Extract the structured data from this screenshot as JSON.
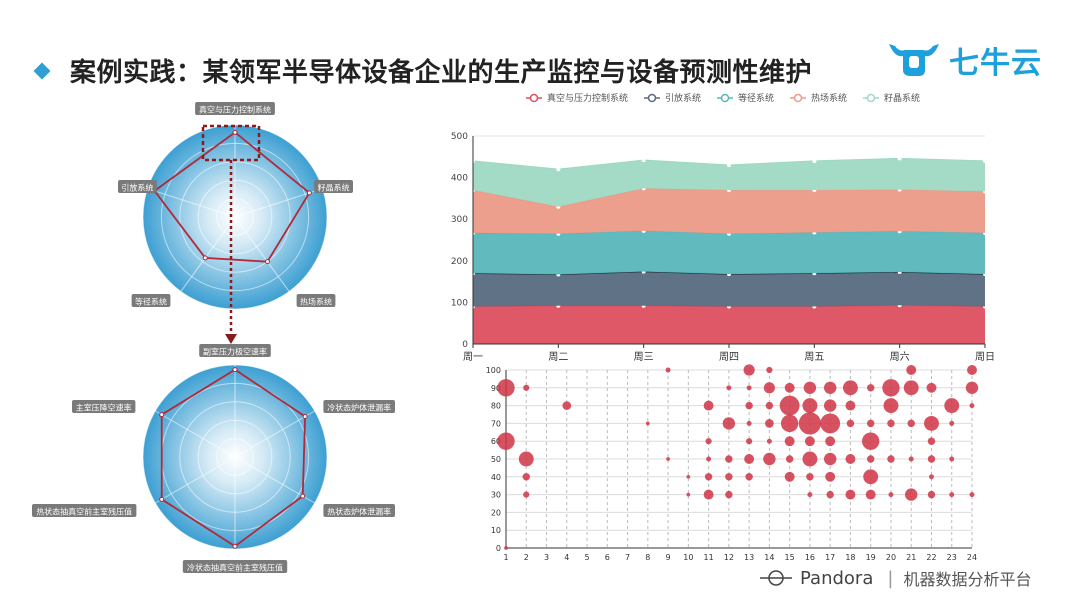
{
  "header": {
    "title": "案例实践：某领军半导体设备企业的生产监控与设备预测性维护",
    "logo_text": "七牛云"
  },
  "footer": {
    "brand": "Pandora",
    "watermark": "机器数据分析平台"
  },
  "colors": {
    "accent": "#2f9fd6",
    "radar_fill": "#4aa8d8",
    "radar_line": "#b02a3a",
    "highlight": "#8b1a1a"
  },
  "chart_data": [
    {
      "type": "radar",
      "axes": [
        "真空与压力控制系统",
        "籽晶系统",
        "热场系统",
        "等径系统",
        "引放系统"
      ],
      "values": [
        92,
        85,
        60,
        55,
        92
      ],
      "max": 100
    },
    {
      "type": "radar",
      "axes": [
        "副室压力极空速率",
        "冷状态炉体泄漏率",
        "热状态炉体泄漏率",
        "冷状态抽真空前主室残压值",
        "热状态抽真空前主室残压值",
        "主室压降空速率"
      ],
      "values": [
        95,
        88,
        85,
        97,
        92,
        92
      ],
      "max": 100
    },
    {
      "type": "area",
      "legend": [
        "真空与压力控制系统",
        "引放系统",
        "等径系统",
        "热场系统",
        "籽晶系统"
      ],
      "categories": [
        "周一",
        "周二",
        "周三",
        "周四",
        "周五",
        "周六",
        "周日"
      ],
      "ylim": [
        0,
        500
      ],
      "yticks": [
        0,
        100,
        200,
        300,
        400,
        500
      ],
      "series": [
        {
          "name": "真空与压力控制系统",
          "color": "#dd4f5f",
          "values": [
            90,
            92,
            92,
            90,
            90,
            93,
            90
          ]
        },
        {
          "name": "引放系统",
          "color": "#566a7f",
          "values": [
            80,
            75,
            82,
            78,
            80,
            80,
            78
          ]
        },
        {
          "name": "等径系统",
          "color": "#58b6bb",
          "values": [
            97,
            98,
            98,
            97,
            98,
            98,
            99
          ]
        },
        {
          "name": "热场系统",
          "color": "#eb9a86",
          "values": [
            103,
            65,
            102,
            105,
            102,
            100,
            100
          ]
        },
        {
          "name": "籽晶系统",
          "color": "#9fd9c4",
          "values": [
            70,
            90,
            68,
            60,
            70,
            75,
            73
          ]
        }
      ]
    },
    {
      "type": "scatter",
      "x_ticks": [
        "1",
        "2",
        "3",
        "4",
        "5",
        "6",
        "7",
        "8",
        "9",
        "10",
        "11",
        "12",
        "13",
        "14",
        "15",
        "16",
        "17",
        "18",
        "19",
        "20",
        "21",
        "22",
        "23",
        "24"
      ],
      "y_ticks": [
        0,
        10,
        20,
        30,
        40,
        50,
        60,
        70,
        80,
        90,
        100
      ],
      "color": "#d03445",
      "points": [
        [
          1,
          90,
          14
        ],
        [
          1,
          60,
          14
        ],
        [
          1,
          0,
          3
        ],
        [
          2,
          90,
          5
        ],
        [
          2,
          50,
          12
        ],
        [
          2,
          40,
          6
        ],
        [
          2,
          30,
          5
        ],
        [
          4,
          80,
          7
        ],
        [
          8,
          70,
          3
        ],
        [
          9,
          100,
          4
        ],
        [
          9,
          50,
          3
        ],
        [
          10,
          40,
          3
        ],
        [
          10,
          30,
          3
        ],
        [
          11,
          80,
          8
        ],
        [
          11,
          60,
          5
        ],
        [
          11,
          50,
          4
        ],
        [
          11,
          40,
          6
        ],
        [
          11,
          30,
          8
        ],
        [
          12,
          70,
          10
        ],
        [
          12,
          50,
          6
        ],
        [
          12,
          40,
          6
        ],
        [
          12,
          30,
          6
        ],
        [
          12,
          90,
          4
        ],
        [
          13,
          100,
          9
        ],
        [
          13,
          80,
          6
        ],
        [
          13,
          70,
          4
        ],
        [
          13,
          60,
          5
        ],
        [
          13,
          50,
          8
        ],
        [
          13,
          40,
          6
        ],
        [
          13,
          90,
          4
        ],
        [
          14,
          100,
          5
        ],
        [
          14,
          90,
          9
        ],
        [
          14,
          80,
          6
        ],
        [
          14,
          70,
          7
        ],
        [
          14,
          60,
          4
        ],
        [
          14,
          50,
          10
        ],
        [
          15,
          80,
          16
        ],
        [
          15,
          70,
          14
        ],
        [
          15,
          90,
          8
        ],
        [
          15,
          60,
          8
        ],
        [
          15,
          50,
          6
        ],
        [
          15,
          40,
          8
        ],
        [
          16,
          70,
          18
        ],
        [
          16,
          80,
          12
        ],
        [
          16,
          90,
          10
        ],
        [
          16,
          60,
          8
        ],
        [
          16,
          50,
          12
        ],
        [
          16,
          40,
          6
        ],
        [
          16,
          30,
          4
        ],
        [
          17,
          70,
          16
        ],
        [
          17,
          90,
          10
        ],
        [
          17,
          80,
          10
        ],
        [
          17,
          60,
          8
        ],
        [
          17,
          50,
          10
        ],
        [
          17,
          40,
          8
        ],
        [
          17,
          30,
          6
        ],
        [
          18,
          90,
          12
        ],
        [
          18,
          80,
          8
        ],
        [
          18,
          70,
          6
        ],
        [
          18,
          50,
          8
        ],
        [
          18,
          30,
          8
        ],
        [
          19,
          60,
          14
        ],
        [
          19,
          90,
          6
        ],
        [
          19,
          70,
          6
        ],
        [
          19,
          50,
          6
        ],
        [
          19,
          40,
          12
        ],
        [
          19,
          30,
          8
        ],
        [
          20,
          90,
          14
        ],
        [
          20,
          80,
          12
        ],
        [
          20,
          70,
          6
        ],
        [
          20,
          50,
          6
        ],
        [
          20,
          30,
          4
        ],
        [
          21,
          100,
          8
        ],
        [
          21,
          90,
          12
        ],
        [
          21,
          70,
          6
        ],
        [
          21,
          30,
          10
        ],
        [
          21,
          50,
          4
        ],
        [
          22,
          90,
          8
        ],
        [
          22,
          70,
          12
        ],
        [
          22,
          60,
          6
        ],
        [
          22,
          50,
          6
        ],
        [
          22,
          30,
          6
        ],
        [
          22,
          40,
          4
        ],
        [
          23,
          80,
          12
        ],
        [
          23,
          70,
          4
        ],
        [
          23,
          50,
          4
        ],
        [
          23,
          30,
          4
        ],
        [
          24,
          100,
          8
        ],
        [
          24,
          90,
          10
        ],
        [
          24,
          80,
          4
        ],
        [
          24,
          30,
          4
        ]
      ]
    }
  ]
}
